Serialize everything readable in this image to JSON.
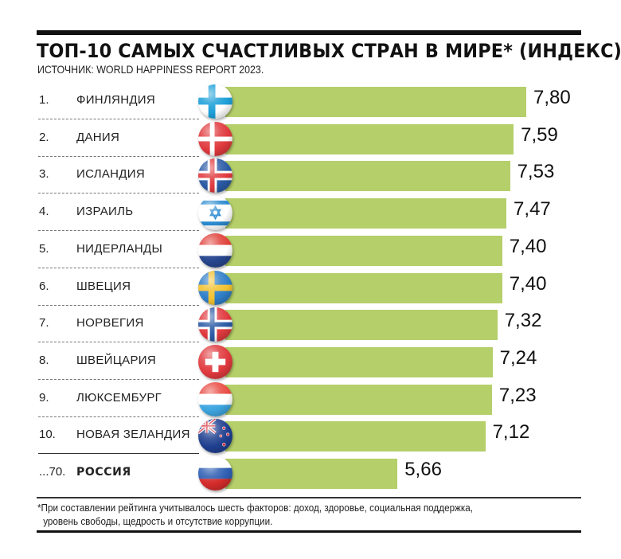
{
  "header": {
    "title": "ТОП-10 САМЫХ СЧАСТЛИВЫХ СТРАН В МИРЕ* (ИНДЕКС)",
    "source": "ИСТОЧНИК: WORLD HAPPINESS REPORT 2023."
  },
  "rows": [
    {
      "rank": "1.",
      "country": "ФИНЛЯНДИЯ",
      "value": "7,80",
      "flag": "finland-flag"
    },
    {
      "rank": "2.",
      "country": "ДАНИЯ",
      "value": "7,59",
      "flag": "denmark-flag"
    },
    {
      "rank": "3.",
      "country": "ИСЛАНДИЯ",
      "value": "7,53",
      "flag": "iceland-flag"
    },
    {
      "rank": "4.",
      "country": "ИЗРАИЛЬ",
      "value": "7,47",
      "flag": "israel-flag"
    },
    {
      "rank": "5.",
      "country": "НИДЕРЛАНДЫ",
      "value": "7,40",
      "flag": "netherlands-flag"
    },
    {
      "rank": "6.",
      "country": "ШВЕЦИЯ",
      "value": "7,40",
      "flag": "sweden-flag"
    },
    {
      "rank": "7.",
      "country": "НОРВЕГИЯ",
      "value": "7,32",
      "flag": "norway-flag"
    },
    {
      "rank": "8.",
      "country": "ШВЕЙЦАРИЯ",
      "value": "7,24",
      "flag": "switzerland-flag"
    },
    {
      "rank": "9.",
      "country": "ЛЮКСЕМБУРГ",
      "value": "7,23",
      "flag": "luxembourg-flag"
    },
    {
      "rank": "10.",
      "country": "НОВАЯ ЗЕЛАНДИЯ",
      "value": "7,12",
      "flag": "new-zealand-flag"
    },
    {
      "rank": "...70.",
      "country": "РОССИЯ",
      "value": "5,66",
      "flag": "russia-flag"
    }
  ],
  "footnote": {
    "line1": "*При составлении рейтинга учитывалось шесть факторов: доход, здоровье, социальная поддержка,",
    "line2": "уровень свободы, щедрость и отсутствие коррупции."
  },
  "colors": {
    "bar": "#b5cf6a",
    "rule": "#111111"
  },
  "chart_data": {
    "type": "bar",
    "orientation": "horizontal",
    "title": "ТОП-10 САМЫХ СЧАСТЛИВЫХ СТРАН В МИРЕ* (ИНДЕКС)",
    "subtitle": "ИСТОЧНИК: WORLD HAPPINESS REPORT 2023.",
    "categories": [
      "ФИНЛЯНДИЯ",
      "ДАНИЯ",
      "ИСЛАНДИЯ",
      "ИЗРАИЛЬ",
      "НИДЕРЛАНДЫ",
      "ШВЕЦИЯ",
      "НОРВЕГИЯ",
      "ШВЕЙЦАРИЯ",
      "ЛЮКСЕМБУРГ",
      "НОВАЯ ЗЕЛАНДИЯ",
      "РОССИЯ"
    ],
    "ranks": [
      "1",
      "2",
      "3",
      "4",
      "5",
      "6",
      "7",
      "8",
      "9",
      "10",
      "70"
    ],
    "values": [
      7.8,
      7.59,
      7.53,
      7.47,
      7.4,
      7.4,
      7.32,
      7.24,
      7.23,
      7.12,
      5.66
    ],
    "xlabel": "",
    "ylabel": "",
    "grid": false,
    "legend": null,
    "data_labels": true,
    "bar_color": "#b5cf6a",
    "annotations": [
      "*При составлении рейтинга учитывалось шесть факторов: доход, здоровье, социальная поддержка, уровень свободы, щедрость и отсутствие коррупции."
    ]
  }
}
